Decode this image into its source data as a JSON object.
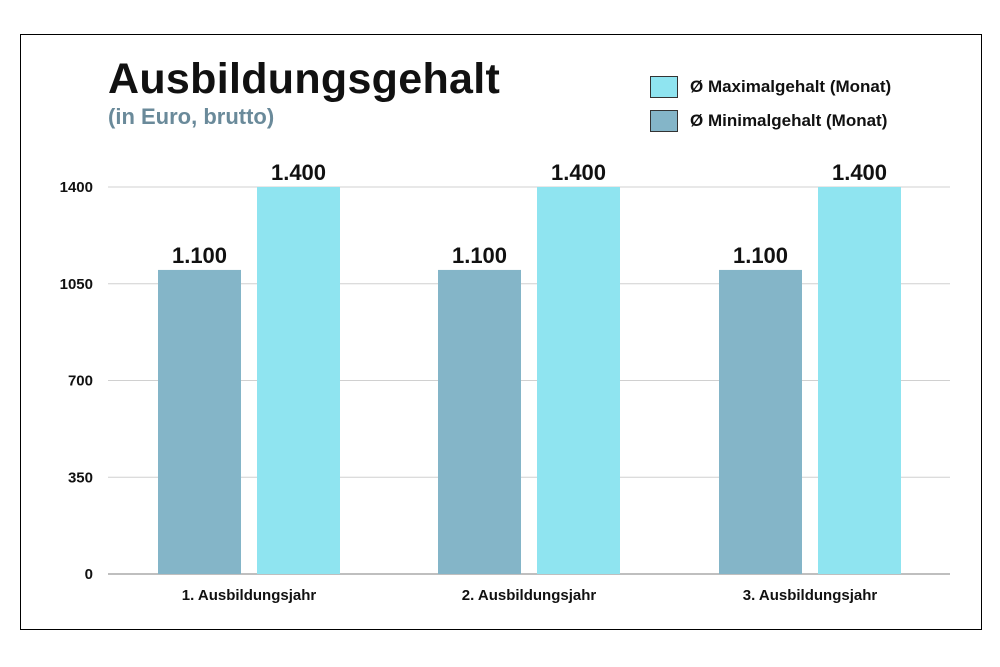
{
  "chart_data": {
    "type": "bar",
    "title": "Ausbildungsgehalt",
    "subtitle": "(in Euro, brutto)",
    "categories": [
      "1. Ausbildungsjahr",
      "2. Ausbildungsjahr",
      "3. Ausbildungsjahr"
    ],
    "series": [
      {
        "name": "Ø Minimalgehalt (Monat)",
        "values": [
          1100,
          1100,
          1100
        ],
        "labels": [
          "1.100",
          "1.100",
          "1.100"
        ],
        "color": "#84b5c8"
      },
      {
        "name": "Ø Maximalgehalt (Monat)",
        "values": [
          1400,
          1400,
          1400
        ],
        "labels": [
          "1.400",
          "1.400",
          "1.400"
        ],
        "color": "#8fe4f0"
      }
    ],
    "legend_order": [
      1,
      0
    ],
    "legend_position": "top-right",
    "yticks": [
      0,
      350,
      700,
      1050,
      1400
    ],
    "ylim": [
      0,
      1400
    ],
    "grid": true,
    "xlabel": "",
    "ylabel": ""
  }
}
